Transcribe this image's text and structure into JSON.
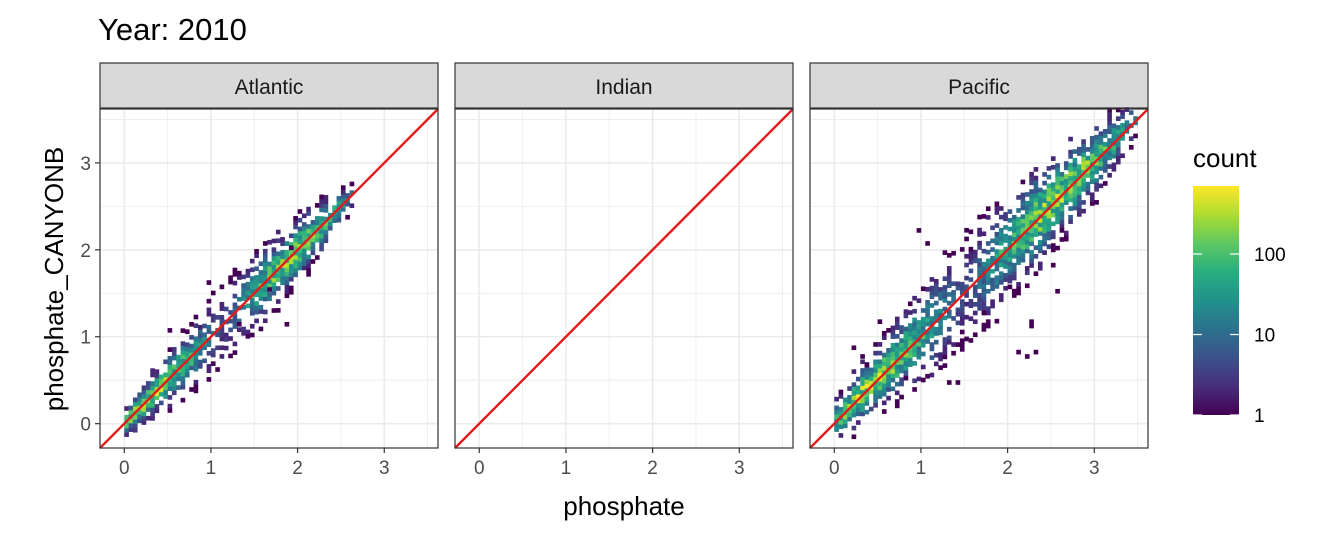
{
  "chart_data": {
    "type": "heatmap",
    "title": "Year: 2010",
    "xlabel": "phosphate",
    "ylabel": "phosphate_CANYONB",
    "xlim": [
      -0.28,
      3.62
    ],
    "ylim": [
      -0.28,
      3.62
    ],
    "x_ticks": [
      0,
      1,
      2,
      3
    ],
    "y_ticks": [
      0,
      1,
      2,
      3
    ],
    "grid": true,
    "bin_size": 0.05,
    "reference_line": {
      "slope": 1,
      "intercept": 0,
      "color": "#e31a1c"
    },
    "legend": {
      "title": "count",
      "scale": "log10",
      "range": [
        1,
        700
      ],
      "ticks": [
        1,
        10,
        100
      ],
      "tick_labels": [
        "1",
        "10",
        "100"
      ],
      "colormap": "viridis",
      "position": "right"
    },
    "facets": [
      {
        "label": "Atlantic",
        "trend": {
          "x_range": [
            0.0,
            2.62
          ],
          "bias": 0.0,
          "spread": 0.07
        },
        "outliers": [
          [
            0.95,
            1.6
          ],
          [
            1.0,
            1.48
          ],
          [
            1.3,
            1.12
          ],
          [
            1.65,
            1.52
          ],
          [
            1.75,
            1.28
          ],
          [
            1.85,
            1.12
          ],
          [
            1.9,
            2.0
          ],
          [
            1.6,
            2.05
          ],
          [
            0.5,
            1.05
          ]
        ]
      },
      {
        "label": "Indian",
        "trend": null,
        "outliers": []
      },
      {
        "label": "Pacific",
        "trend": {
          "x_range": [
            0.0,
            3.45
          ],
          "bias": 0.02,
          "spread": 0.1
        },
        "outliers": [
          [
            0.95,
            2.2
          ],
          [
            1.05,
            2.05
          ],
          [
            0.5,
            1.15
          ],
          [
            0.6,
            1.05
          ],
          [
            0.2,
            0.85
          ],
          [
            0.3,
            0.75
          ],
          [
            0.35,
            0.65
          ],
          [
            0.8,
            0.5
          ],
          [
            1.3,
            0.45
          ],
          [
            1.4,
            0.45
          ],
          [
            1.7,
            1.25
          ],
          [
            1.75,
            1.15
          ],
          [
            2.0,
            1.55
          ],
          [
            2.25,
            1.15
          ],
          [
            2.1,
            0.8
          ],
          [
            2.3,
            0.8
          ],
          [
            2.2,
            0.75
          ],
          [
            2.25,
            1.1
          ],
          [
            2.6,
            2.2
          ],
          [
            2.65,
            2.1
          ],
          [
            2.5,
            1.8
          ],
          [
            2.55,
            1.5
          ]
        ]
      }
    ]
  }
}
